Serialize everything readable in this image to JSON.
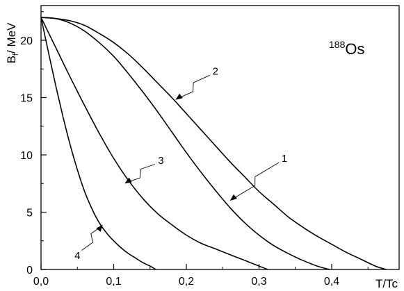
{
  "chart_data": {
    "type": "line",
    "title": "",
    "annotation": {
      "mass": "188",
      "element": "Os"
    },
    "xlabel": "T/Tc",
    "ylabel": {
      "main": "B",
      "sub": "f",
      "rest": "/ MeV"
    },
    "xlim": [
      0.0,
      0.5
    ],
    "ylim": [
      0,
      23
    ],
    "xticks": [
      0.0,
      0.1,
      0.2,
      0.3,
      0.4
    ],
    "xtick_labels": [
      "0,0",
      "0,1",
      "0,2",
      "0,3",
      "0,4"
    ],
    "yticks": [
      0,
      5,
      10,
      15,
      20
    ],
    "ytick_labels": [
      "0",
      "5",
      "10",
      "15",
      "20"
    ],
    "grid": false,
    "legend": "none",
    "series": [
      {
        "name": "1",
        "x": [
          0.0,
          0.02,
          0.04,
          0.06,
          0.08,
          0.1,
          0.12,
          0.14,
          0.16,
          0.18,
          0.2,
          0.22,
          0.24,
          0.26,
          0.28,
          0.3,
          0.32,
          0.34,
          0.36,
          0.38,
          0.397
        ],
        "y": [
          22.0,
          21.9,
          21.5,
          20.8,
          19.8,
          18.6,
          17.1,
          15.5,
          13.8,
          12.0,
          10.2,
          8.5,
          6.9,
          5.4,
          4.1,
          3.0,
          2.1,
          1.4,
          0.8,
          0.3,
          0.0
        ]
      },
      {
        "name": "2",
        "x": [
          0.0,
          0.02,
          0.04,
          0.06,
          0.08,
          0.1,
          0.12,
          0.14,
          0.16,
          0.18,
          0.2,
          0.22,
          0.24,
          0.26,
          0.28,
          0.3,
          0.32,
          0.34,
          0.36,
          0.38,
          0.4,
          0.42,
          0.44,
          0.46,
          0.475
        ],
        "y": [
          22.0,
          21.9,
          21.7,
          21.3,
          20.6,
          19.8,
          18.8,
          17.6,
          16.3,
          15.0,
          13.6,
          12.2,
          10.8,
          9.4,
          8.1,
          6.8,
          5.7,
          4.6,
          3.7,
          2.9,
          2.2,
          1.5,
          0.9,
          0.3,
          0.0
        ]
      },
      {
        "name": "3",
        "x": [
          0.0,
          0.02,
          0.04,
          0.06,
          0.08,
          0.1,
          0.12,
          0.14,
          0.16,
          0.18,
          0.2,
          0.22,
          0.24,
          0.26,
          0.28,
          0.3,
          0.312
        ],
        "y": [
          22.0,
          19.4,
          16.8,
          14.3,
          11.9,
          9.7,
          7.8,
          6.2,
          4.9,
          3.9,
          3.0,
          2.3,
          1.8,
          1.3,
          0.8,
          0.3,
          0.0
        ]
      },
      {
        "name": "4",
        "x": [
          0.0,
          0.01,
          0.02,
          0.03,
          0.04,
          0.05,
          0.06,
          0.07,
          0.08,
          0.09,
          0.1,
          0.11,
          0.12,
          0.13,
          0.14,
          0.15,
          0.158
        ],
        "y": [
          22.0,
          19.0,
          16.1,
          13.4,
          10.9,
          8.7,
          6.8,
          5.3,
          4.1,
          3.2,
          2.5,
          1.9,
          1.4,
          1.0,
          0.6,
          0.3,
          0.0
        ]
      }
    ],
    "callouts": [
      {
        "label": "1",
        "label_at": [
          0.335,
          9.4
        ],
        "arrow_to": [
          0.26,
          6.0
        ]
      },
      {
        "label": "2",
        "label_at": [
          0.24,
          17.0
        ],
        "arrow_to": [
          0.185,
          14.8
        ]
      },
      {
        "label": "3",
        "label_at": [
          0.165,
          9.2
        ],
        "arrow_to": [
          0.115,
          7.5
        ]
      },
      {
        "label": "4",
        "label_at": [
          0.05,
          0.9
        ],
        "arrow_to": [
          0.085,
          3.9
        ]
      }
    ]
  }
}
